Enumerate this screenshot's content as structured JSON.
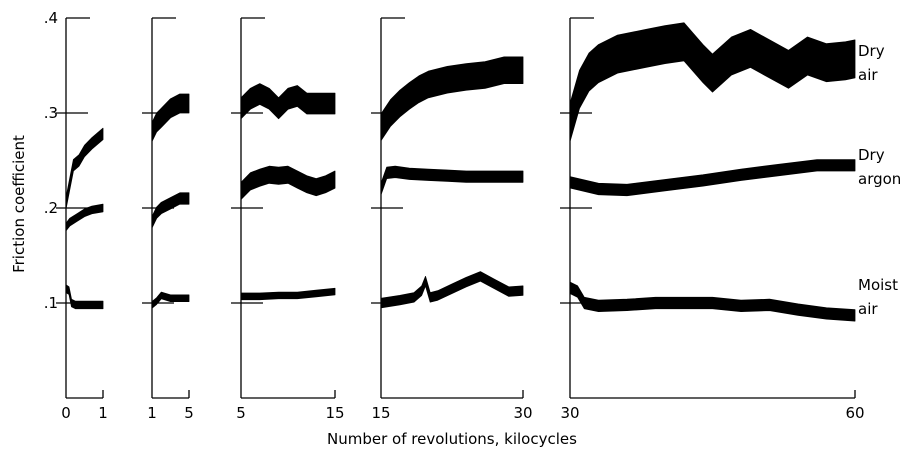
{
  "chart_data": {
    "type": "line",
    "title": "",
    "xlabel": "Number of revolutions, kilocycles",
    "ylabel": "Friction coefficient",
    "ylim": [
      0,
      0.4
    ],
    "yticks": [
      ".1",
      ".2",
      ".3",
      ".4"
    ],
    "grid": false,
    "legend_placement": "right, labels beside series ends",
    "series": [
      {
        "name": "Dry air",
        "label_lines": [
          "Dry",
          "air"
        ]
      },
      {
        "name": "Dry argon",
        "label_lines": [
          "Dry",
          "argon"
        ]
      },
      {
        "name": "Moist air",
        "label_lines": [
          "Moist",
          "air"
        ]
      }
    ],
    "panels": [
      {
        "xlim": [
          0,
          1
        ],
        "xticks": [
          "0",
          "1"
        ],
        "series": [
          {
            "name": "Dry air",
            "x": [
              0,
              0.1,
              0.2,
              0.35,
              0.5,
              0.7,
              1.0
            ],
            "y": [
              0.205,
              0.225,
              0.245,
              0.25,
              0.26,
              0.268,
              0.278
            ],
            "width": 0.012
          },
          {
            "name": "Dry argon",
            "x": [
              0,
              0.1,
              0.3,
              0.5,
              0.7,
              1.0
            ],
            "y": [
              0.18,
              0.185,
              0.19,
              0.195,
              0.198,
              0.2
            ],
            "width": 0.008
          },
          {
            "name": "Moist air",
            "x": [
              0,
              0.08,
              0.15,
              0.25,
              0.5,
              0.75,
              1.0
            ],
            "y": [
              0.115,
              0.113,
              0.1,
              0.098,
              0.098,
              0.098,
              0.098
            ],
            "width": 0.008
          }
        ]
      },
      {
        "xlim": [
          1,
          5
        ],
        "xticks": [
          "1",
          "5"
        ],
        "series": [
          {
            "name": "Dry air",
            "x": [
              1,
              1.5,
              2,
              3,
              4,
              5
            ],
            "y": [
              0.28,
              0.29,
              0.295,
              0.305,
              0.31,
              0.31
            ],
            "width": 0.02
          },
          {
            "name": "Dry argon",
            "x": [
              1,
              1.5,
              2,
              3,
              4,
              5
            ],
            "y": [
              0.185,
              0.195,
              0.2,
              0.205,
              0.21,
              0.21
            ],
            "width": 0.012
          },
          {
            "name": "Moist air",
            "x": [
              1,
              1.5,
              2,
              3,
              4,
              5
            ],
            "y": [
              0.098,
              0.102,
              0.108,
              0.105,
              0.105,
              0.105
            ],
            "width": 0.007
          }
        ]
      },
      {
        "xlim": [
          5,
          15
        ],
        "xticks": [
          "5",
          "15"
        ],
        "series": [
          {
            "name": "Dry air",
            "x": [
              5,
              6,
              7,
              8,
              9,
              10,
              11,
              12,
              13,
              14,
              15
            ],
            "y": [
              0.305,
              0.315,
              0.32,
              0.315,
              0.305,
              0.315,
              0.318,
              0.31,
              0.31,
              0.31,
              0.31
            ],
            "width": 0.022
          },
          {
            "name": "Dry argon",
            "x": [
              5,
              6,
              7,
              8,
              9,
              10,
              11,
              12,
              13,
              14,
              15
            ],
            "y": [
              0.218,
              0.228,
              0.232,
              0.235,
              0.234,
              0.235,
              0.23,
              0.225,
              0.222,
              0.225,
              0.23
            ],
            "width": 0.018
          },
          {
            "name": "Moist air",
            "x": [
              5,
              7,
              9,
              11,
              13,
              15
            ],
            "y": [
              0.107,
              0.107,
              0.108,
              0.108,
              0.11,
              0.112
            ],
            "width": 0.007
          }
        ]
      },
      {
        "xlim": [
          15,
          30
        ],
        "xticks": [
          "15",
          "30"
        ],
        "series": [
          {
            "name": "Dry air",
            "x": [
              15,
              16,
              17,
              18,
              19,
              20,
              22,
              24,
              26,
              28,
              30
            ],
            "y": [
              0.285,
              0.3,
              0.31,
              0.318,
              0.325,
              0.33,
              0.335,
              0.338,
              0.34,
              0.345,
              0.345
            ],
            "width": 0.028
          },
          {
            "name": "Dry argon",
            "x": [
              15,
              15.6,
              16.5,
              18,
              20,
              22,
              24,
              26,
              28,
              30
            ],
            "y": [
              0.22,
              0.237,
              0.238,
              0.236,
              0.235,
              0.234,
              0.233,
              0.233,
              0.233,
              0.233
            ],
            "width": 0.012
          },
          {
            "name": "Moist air",
            "x": [
              15,
              17,
              18.5,
              19.3,
              19.7,
              20.2,
              21,
              22.5,
              24,
              25.5,
              27,
              28.5,
              30
            ],
            "y": [
              0.1,
              0.103,
              0.106,
              0.113,
              0.123,
              0.106,
              0.108,
              0.115,
              0.122,
              0.128,
              0.12,
              0.112,
              0.113
            ],
            "width": 0.01
          }
        ]
      },
      {
        "xlim": [
          30,
          60
        ],
        "xticks": [
          "30",
          "60"
        ],
        "series": [
          {
            "name": "Dry air",
            "x": [
              30,
              31,
              32,
              33,
              35,
              38,
              40,
              42,
              44,
              45,
              47,
              49,
              51,
              53,
              55,
              57,
              59,
              60
            ],
            "y": [
              0.29,
              0.325,
              0.343,
              0.352,
              0.362,
              0.368,
              0.372,
              0.375,
              0.352,
              0.342,
              0.36,
              0.368,
              0.357,
              0.346,
              0.36,
              0.353,
              0.355,
              0.357
            ],
            "width": 0.04
          },
          {
            "name": "Dry argon",
            "x": [
              30,
              33,
              36,
              40,
              44,
              48,
              52,
              56,
              60
            ],
            "y": [
              0.227,
              0.22,
              0.219,
              0.224,
              0.229,
              0.235,
              0.24,
              0.245,
              0.245
            ],
            "width": 0.012
          },
          {
            "name": "Moist air",
            "x": [
              30,
              30.8,
              31.5,
              33,
              36,
              39,
              42,
              45,
              48,
              51,
              54,
              57,
              60
            ],
            "y": [
              0.116,
              0.112,
              0.1,
              0.097,
              0.098,
              0.1,
              0.1,
              0.1,
              0.097,
              0.098,
              0.093,
              0.089,
              0.087
            ],
            "width": 0.012
          }
        ]
      }
    ]
  }
}
